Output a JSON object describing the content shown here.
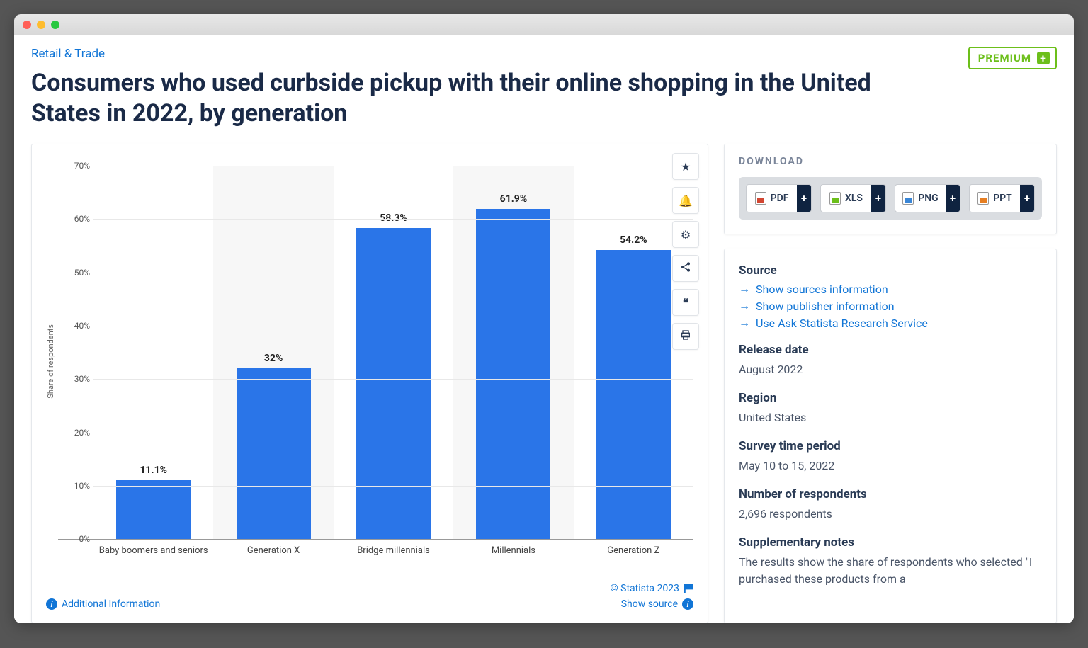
{
  "window": {
    "traffic_colors": [
      "#ff5f57",
      "#febc2e",
      "#28c840"
    ]
  },
  "breadcrumb": "Retail & Trade",
  "title": "Consumers who used curbside pickup with their online shopping in the United States in 2022, by generation",
  "premium": {
    "label": "PREMIUM",
    "plus": "+"
  },
  "chart": {
    "type": "bar",
    "y_axis_label": "Share of respondents",
    "ylim": [
      0,
      70
    ],
    "ytick_step": 10,
    "yticks": [
      "0%",
      "10%",
      "20%",
      "30%",
      "40%",
      "50%",
      "60%",
      "70%"
    ],
    "bar_color": "#2a75e8",
    "grid_color": "#e8e8e8",
    "alt_background": "#f7f7f7",
    "background_color": "#ffffff",
    "categories": [
      "Baby boomers and seniors",
      "Generation X",
      "Bridge millennials",
      "Millennials",
      "Generation Z"
    ],
    "values": [
      11.1,
      32,
      58.3,
      61.9,
      54.2
    ],
    "value_labels": [
      "11.1%",
      "32%",
      "58.3%",
      "61.9%",
      "54.2%"
    ],
    "label_fontsize": 14,
    "bar_width_pct": 62
  },
  "chart_footer": {
    "additional_info": "Additional Information",
    "copyright": "© Statista 2023",
    "show_source": "Show source"
  },
  "download": {
    "heading": "DOWNLOAD",
    "buttons": [
      {
        "label": "PDF",
        "color": "#d24632"
      },
      {
        "label": "XLS",
        "color": "#6cbf1a"
      },
      {
        "label": "PNG",
        "color": "#3a86d6"
      },
      {
        "label": "PPT",
        "color": "#e67e22"
      }
    ]
  },
  "meta": {
    "source_heading": "Source",
    "links": [
      "Show sources information",
      "Show publisher information",
      "Use Ask Statista Research Service"
    ],
    "release_heading": "Release date",
    "release_value": "August 2022",
    "region_heading": "Region",
    "region_value": "United States",
    "survey_heading": "Survey time period",
    "survey_value": "May 10 to 15, 2022",
    "respondents_heading": "Number of respondents",
    "respondents_value": "2,696 respondents",
    "supp_heading": "Supplementary notes",
    "supp_value": "The results show the share of respondents who selected \"I purchased these products from a"
  }
}
